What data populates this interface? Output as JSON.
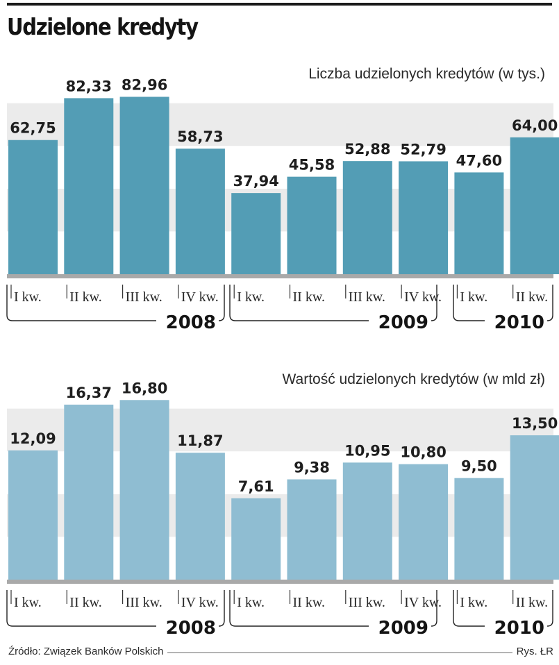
{
  "title": "Udzielone kredyty",
  "source": "Źródło: Związek Banków Polskich",
  "credit": "Rys. ŁR",
  "chart_data": [
    {
      "type": "bar",
      "title": "Liczba udzielonych kredytów (w tys.)",
      "categories": [
        "I kw.",
        "II kw.",
        "III kw.",
        "IV kw.",
        "I kw.",
        "II kw.",
        "III kw.",
        "IV kw.",
        "I kw.",
        "II kw."
      ],
      "years": [
        {
          "label": "2008",
          "start": 0,
          "end": 3
        },
        {
          "label": "2009",
          "start": 4,
          "end": 7
        },
        {
          "label": "2010",
          "start": 8,
          "end": 9
        }
      ],
      "values": [
        62.75,
        82.33,
        82.96,
        58.73,
        37.94,
        45.58,
        52.88,
        52.79,
        47.6,
        64.0
      ],
      "value_labels": [
        "62,75",
        "82,33",
        "82,96",
        "58,73",
        "37,94",
        "45,58",
        "52,88",
        "52,79",
        "47,60",
        "64,00"
      ],
      "ylim": [
        0,
        100
      ],
      "grid": true,
      "bar_color": "#539db5"
    },
    {
      "type": "bar",
      "title": "Wartość udzielonych kredytów (w mld zł)",
      "categories": [
        "I kw.",
        "II kw.",
        "III kw.",
        "IV kw.",
        "I kw.",
        "II kw.",
        "III kw.",
        "IV kw.",
        "I kw.",
        "II kw."
      ],
      "years": [
        {
          "label": "2008",
          "start": 0,
          "end": 3
        },
        {
          "label": "2009",
          "start": 4,
          "end": 7
        },
        {
          "label": "2010",
          "start": 8,
          "end": 9
        }
      ],
      "values": [
        12.09,
        16.37,
        16.8,
        11.87,
        7.61,
        9.38,
        10.95,
        10.8,
        9.5,
        13.5
      ],
      "value_labels": [
        "12,09",
        "16,37",
        "16,80",
        "11,87",
        "7,61",
        "9,38",
        "10,95",
        "10,80",
        "9,50",
        "13,50"
      ],
      "ylim": [
        0,
        20
      ],
      "grid": true,
      "bar_color": "#8fbdd2"
    }
  ]
}
